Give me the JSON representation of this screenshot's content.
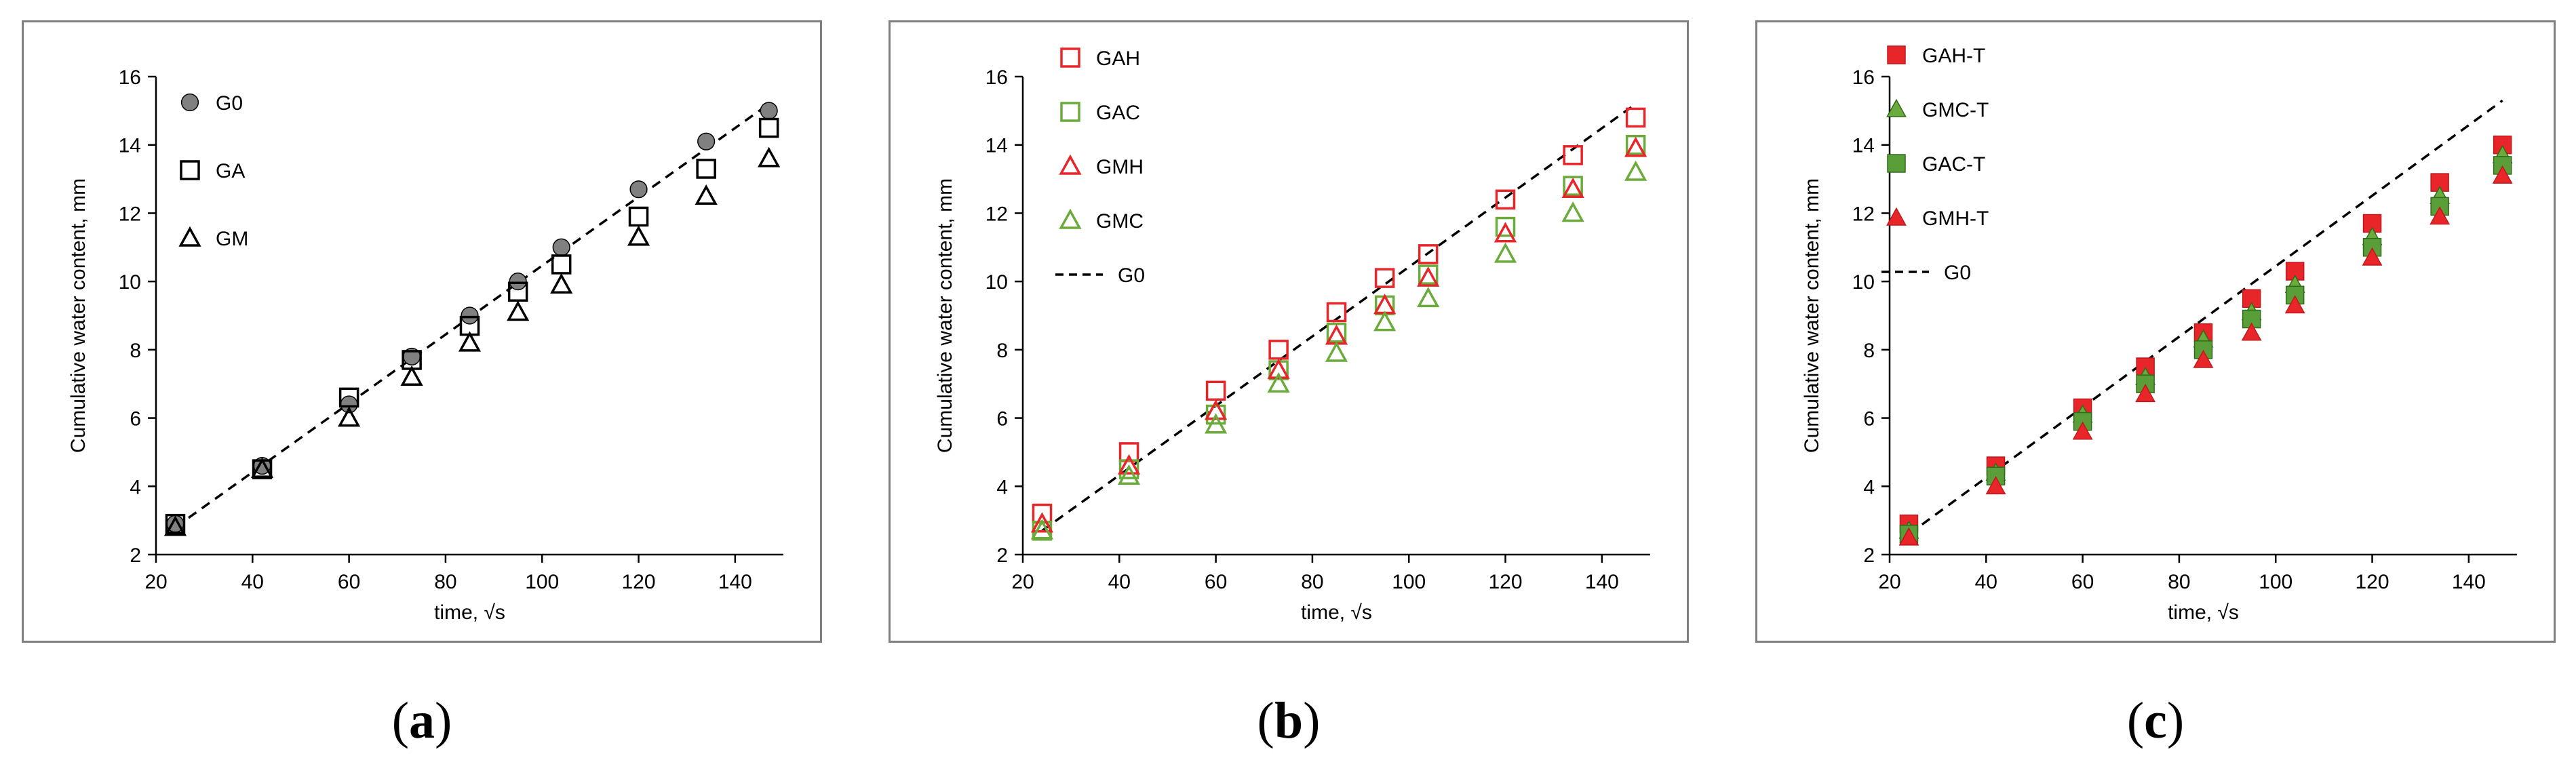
{
  "figure": {
    "labels": [
      {
        "open": "(",
        "letter": "a",
        "close": ")"
      },
      {
        "open": "(",
        "letter": "b",
        "close": ")"
      },
      {
        "open": "(",
        "letter": "c",
        "close": ")"
      }
    ]
  },
  "chart_data": [
    {
      "type": "scatter",
      "title": "",
      "xlabel": "time, √s",
      "ylabel": "Cumulative  water  content,  mm",
      "xlim": [
        20,
        150
      ],
      "ylim": [
        2,
        16
      ],
      "xticks": [
        20,
        40,
        60,
        80,
        100,
        120,
        140
      ],
      "yticks": [
        2,
        4,
        6,
        8,
        10,
        12,
        14,
        16
      ],
      "grid": false,
      "legend_position": "top-left",
      "x": [
        24,
        42,
        60,
        73,
        85,
        95,
        104,
        120,
        134,
        147
      ],
      "series": [
        {
          "name": "G0",
          "marker": "circle",
          "color": "#808080",
          "fill": true,
          "values": [
            2.9,
            4.6,
            6.4,
            7.8,
            9.0,
            10.0,
            11.0,
            12.7,
            14.1,
            15.0
          ]
        },
        {
          "name": "GA",
          "marker": "square",
          "color": "#000000",
          "fill": false,
          "values": [
            2.9,
            4.5,
            6.6,
            7.7,
            8.7,
            9.7,
            10.5,
            11.9,
            13.3,
            14.5
          ]
        },
        {
          "name": "GM",
          "marker": "triangle",
          "color": "#000000",
          "fill": false,
          "values": [
            2.8,
            4.5,
            6.0,
            7.2,
            8.2,
            9.1,
            9.9,
            11.3,
            12.5,
            13.6
          ]
        }
      ],
      "reference_line": {
        "name": "G0",
        "style": "dashed",
        "x": [
          24,
          147
        ],
        "y": [
          2.8,
          15.2
        ],
        "show_in_legend": false
      }
    },
    {
      "type": "scatter",
      "title": "",
      "xlabel": "time, √s",
      "ylabel": "Cumulative  water  content,  mm",
      "xlim": [
        20,
        150
      ],
      "ylim": [
        2,
        16
      ],
      "xticks": [
        20,
        40,
        60,
        80,
        100,
        120,
        140
      ],
      "yticks": [
        2,
        4,
        6,
        8,
        10,
        12,
        14,
        16
      ],
      "grid": false,
      "legend_position": "top-left",
      "x": [
        24,
        42,
        60,
        73,
        85,
        95,
        104,
        120,
        134,
        147
      ],
      "series": [
        {
          "name": "GAH",
          "marker": "square",
          "color": "#e8262a",
          "fill": false,
          "values": [
            3.2,
            5.0,
            6.8,
            8.0,
            9.1,
            10.1,
            10.8,
            12.4,
            13.7,
            14.8
          ]
        },
        {
          "name": "GAC",
          "marker": "square",
          "color": "#6aab3c",
          "fill": false,
          "values": [
            2.7,
            4.5,
            6.1,
            7.4,
            8.5,
            9.3,
            10.2,
            11.6,
            12.8,
            14.0
          ]
        },
        {
          "name": "GMH",
          "marker": "triangle",
          "color": "#e8262a",
          "fill": false,
          "values": [
            2.9,
            4.6,
            6.2,
            7.4,
            8.4,
            9.3,
            10.1,
            11.4,
            12.7,
            13.9
          ]
        },
        {
          "name": "GMC",
          "marker": "triangle",
          "color": "#6aab3c",
          "fill": false,
          "values": [
            2.7,
            4.3,
            5.8,
            7.0,
            7.9,
            8.8,
            9.5,
            10.8,
            12.0,
            13.2
          ]
        }
      ],
      "reference_line": {
        "name": "G0",
        "style": "dashed",
        "x": [
          24,
          147
        ],
        "y": [
          2.7,
          15.2
        ],
        "show_in_legend": true
      }
    },
    {
      "type": "scatter",
      "title": "",
      "xlabel": "time, √s",
      "ylabel": "Cumulative  water  content,  mm",
      "xlim": [
        20,
        150
      ],
      "ylim": [
        2,
        16
      ],
      "xticks": [
        20,
        40,
        60,
        80,
        100,
        120,
        140
      ],
      "yticks": [
        2,
        4,
        6,
        8,
        10,
        12,
        14,
        16
      ],
      "grid": false,
      "legend_position": "top-left",
      "x": [
        24,
        42,
        60,
        73,
        85,
        95,
        104,
        120,
        134,
        147
      ],
      "series": [
        {
          "name": "GAH-T",
          "marker": "square",
          "color": "#e8262a",
          "fill": true,
          "edge": "#c0181b",
          "values": [
            2.9,
            4.6,
            6.3,
            7.5,
            8.5,
            9.5,
            10.3,
            11.7,
            12.9,
            14.0
          ]
        },
        {
          "name": "GMC-T",
          "marker": "triangle",
          "color": "#6aab3c",
          "fill": true,
          "edge": "#2e6b1a",
          "values": [
            2.7,
            4.4,
            6.1,
            7.2,
            8.3,
            9.1,
            9.9,
            11.3,
            12.5,
            13.7
          ]
        },
        {
          "name": "GAC-T",
          "marker": "square",
          "color": "#5a9e3a",
          "fill": true,
          "edge": "#2e6b1a",
          "values": [
            2.6,
            4.3,
            5.9,
            7.0,
            8.0,
            8.9,
            9.6,
            11.0,
            12.2,
            13.4
          ]
        },
        {
          "name": "GMH-T",
          "marker": "triangle",
          "color": "#e8262a",
          "fill": true,
          "edge": "#c0181b",
          "values": [
            2.5,
            4.0,
            5.6,
            6.7,
            7.7,
            8.5,
            9.3,
            10.7,
            11.9,
            13.1
          ]
        }
      ],
      "reference_line": {
        "name": "G0",
        "style": "dashed",
        "x": [
          24,
          147
        ],
        "y": [
          2.6,
          15.3
        ],
        "show_in_legend": true
      }
    }
  ]
}
